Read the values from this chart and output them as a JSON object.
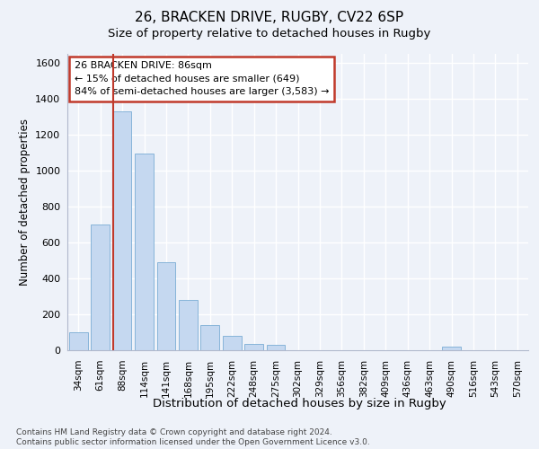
{
  "title1": "26, BRACKEN DRIVE, RUGBY, CV22 6SP",
  "title2": "Size of property relative to detached houses in Rugby",
  "xlabel": "Distribution of detached houses by size in Rugby",
  "ylabel": "Number of detached properties",
  "footnote": "Contains HM Land Registry data © Crown copyright and database right 2024.\nContains public sector information licensed under the Open Government Licence v3.0.",
  "categories": [
    "34sqm",
    "61sqm",
    "88sqm",
    "114sqm",
    "141sqm",
    "168sqm",
    "195sqm",
    "222sqm",
    "248sqm",
    "275sqm",
    "302sqm",
    "329sqm",
    "356sqm",
    "382sqm",
    "409sqm",
    "436sqm",
    "463sqm",
    "490sqm",
    "516sqm",
    "543sqm",
    "570sqm"
  ],
  "values": [
    100,
    700,
    1330,
    1095,
    490,
    280,
    140,
    80,
    35,
    30,
    0,
    0,
    0,
    0,
    0,
    0,
    0,
    20,
    0,
    0,
    0
  ],
  "highlight_index": 2,
  "bar_color": "#c5d8f0",
  "highlight_line_color": "#c0392b",
  "bar_edge_color": "#7aadd4",
  "background_color": "#eef2f9",
  "grid_color": "#ffffff",
  "ylim": [
    0,
    1650
  ],
  "yticks": [
    0,
    200,
    400,
    600,
    800,
    1000,
    1200,
    1400,
    1600
  ],
  "annotation_text": "26 BRACKEN DRIVE: 86sqm\n← 15% of detached houses are smaller (649)\n84% of semi-detached houses are larger (3,583) →",
  "annotation_box_color": "#ffffff",
  "annotation_border_color": "#c0392b",
  "title1_fontsize": 11,
  "title2_fontsize": 9.5
}
